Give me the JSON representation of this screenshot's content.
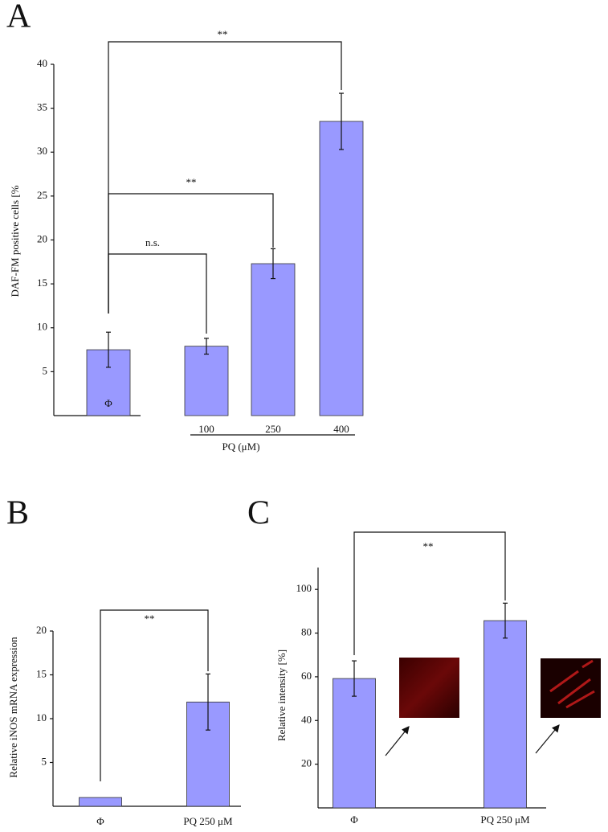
{
  "chart_data": [
    {
      "type": "bar",
      "panel": "A",
      "y_label": "DAF-FM positive cells [%",
      "x_label": "PQ (μM)",
      "categories": [
        "Φ",
        "100",
        "250",
        "400"
      ],
      "values": [
        7.5,
        7.9,
        17.3,
        33.5
      ],
      "errors": [
        2.0,
        0.9,
        1.7,
        3.2
      ],
      "color": "#9999ff",
      "ylim": [
        0,
        40
      ],
      "yticks": [
        5,
        10,
        15,
        20,
        25,
        30,
        35,
        40
      ],
      "annotations": [
        "**",
        "**",
        "n.s."
      ]
    },
    {
      "type": "bar",
      "panel": "B",
      "y_label": "Relative iNOS mRNA expression",
      "categories": [
        "Φ",
        "PQ 250 μM"
      ],
      "values": [
        1,
        11.9
      ],
      "errors": [
        null,
        3.2
      ],
      "color": "#9999ff",
      "ylim": [
        0,
        20
      ],
      "yticks": [
        5,
        10,
        15,
        20
      ],
      "annotations": [
        "**"
      ]
    },
    {
      "type": "bar",
      "panel": "C",
      "y_label": "Relative intensity [%]",
      "categories": [
        "Φ",
        "PQ 250 μM"
      ],
      "values": [
        59.2,
        85.7
      ],
      "errors": [
        8.1,
        8.0
      ],
      "color": "#9999ff",
      "ylim": [
        0,
        110
      ],
      "yticks": [
        20,
        40,
        60,
        80,
        100
      ],
      "annotations": [
        "**"
      ]
    }
  ]
}
